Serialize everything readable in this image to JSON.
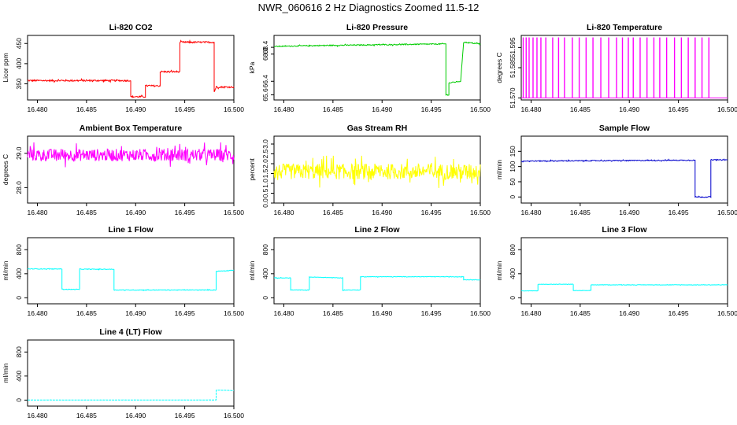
{
  "figure_title": "NWR_060616  2 Hz Diagnostics Zoomed 11.5-12",
  "x_tick_labels": [
    "16.480",
    "16.485",
    "16.490",
    "16.495",
    "16.500"
  ],
  "chart_data": [
    {
      "type": "line",
      "title": "Li-820 CO2",
      "ylabel": "Licor ppm",
      "color": "#ff0000",
      "xlim": [
        16.479,
        16.5
      ],
      "ylim": [
        310,
        470
      ],
      "y_ticks": [
        350,
        400,
        450
      ],
      "y_tick_labels": [
        "350",
        "400",
        "450"
      ],
      "segments": [
        [
          16.479,
          358
        ],
        [
          16.4895,
          358
        ],
        [
          16.4895,
          318
        ],
        [
          16.491,
          318
        ],
        [
          16.491,
          345
        ],
        [
          16.4925,
          345
        ],
        [
          16.4925,
          380
        ],
        [
          16.4945,
          380
        ],
        [
          16.4945,
          453
        ],
        [
          16.498,
          453
        ],
        [
          16.498,
          330
        ],
        [
          16.4982,
          342
        ],
        [
          16.5,
          342
        ]
      ],
      "noise": 2,
      "dashed": false
    },
    {
      "type": "line",
      "title": "Li-820 Pressure",
      "ylabel": "kPa",
      "color": "#00cc00",
      "xlim": [
        16.479,
        16.5
      ],
      "ylim": [
        65.3,
        69.1
      ],
      "y_ticks": [
        65.6,
        66.4,
        68.0,
        68.4
      ],
      "y_tick_labels": [
        "65.6",
        "66.4",
        "68.0",
        "68.4"
      ],
      "segments": [
        [
          16.479,
          68.45
        ],
        [
          16.483,
          68.5
        ],
        [
          16.4965,
          68.6
        ],
        [
          16.4965,
          65.6
        ],
        [
          16.4968,
          65.6
        ],
        [
          16.4968,
          66.3
        ],
        [
          16.498,
          66.4
        ],
        [
          16.4983,
          68.7
        ],
        [
          16.5,
          68.6
        ]
      ],
      "noise": 0.03,
      "dashed": false
    },
    {
      "type": "line",
      "title": "Li-820 Temperature",
      "ylabel": "degrees C",
      "color": "#ff00ff",
      "xlim": [
        16.479,
        16.5
      ],
      "ylim": [
        51.569,
        51.601
      ],
      "y_ticks": [
        51.57,
        51.585,
        51.595
      ],
      "y_tick_labels": [
        "51.570",
        "51.585",
        "51.595"
      ],
      "segments": [
        [
          16.479,
          51.57
        ],
        [
          16.5,
          51.57
        ]
      ],
      "spikes": [
        16.4792,
        16.4795,
        16.4798,
        16.4802,
        16.4806,
        16.481,
        16.4815,
        16.4822,
        16.4828,
        16.4834,
        16.4842,
        16.4849,
        16.4856,
        16.4863,
        16.4871,
        16.4879,
        16.4887,
        16.4893,
        16.4899,
        16.4904,
        16.4911,
        16.4918,
        16.4925,
        16.4931,
        16.4938,
        16.4946,
        16.4953,
        16.496,
        16.4967,
        16.4974,
        16.4981
      ],
      "spike_top": 51.6,
      "noise": 0,
      "dashed": false
    },
    {
      "type": "line",
      "title": "Ambient Box Temperature",
      "ylabel": "degrees C",
      "color": "#ff00ff",
      "xlim": [
        16.479,
        16.5
      ],
      "ylim": [
        27.55,
        29.5
      ],
      "y_ticks": [
        28.0,
        29.0
      ],
      "y_tick_labels": [
        "28.0",
        "29.0"
      ],
      "segments": [
        [
          16.479,
          28.95
        ],
        [
          16.5,
          28.95
        ]
      ],
      "noise": 0.18,
      "dashed": false
    },
    {
      "type": "line",
      "title": "Gas Stream RH",
      "ylabel": "percent",
      "color": "#ffff00",
      "xlim": [
        16.479,
        16.5
      ],
      "ylim": [
        0,
        3.4
      ],
      "y_ticks": [
        0.0,
        0.5,
        1.0,
        1.5,
        2.0,
        2.5,
        3.0
      ],
      "y_tick_labels": [
        "0.0",
        "0.5",
        "1.0",
        "1.5",
        "2.0",
        "2.5",
        "3.0"
      ],
      "segments": [
        [
          16.479,
          1.6
        ],
        [
          16.5,
          1.6
        ]
      ],
      "noise": 0.4,
      "dashed": false
    },
    {
      "type": "line",
      "title": "Sample Flow",
      "ylabel": "ml/min",
      "color": "#0000cc",
      "xlim": [
        16.479,
        16.5
      ],
      "ylim": [
        -20,
        200
      ],
      "y_ticks": [
        0,
        50,
        100,
        150
      ],
      "y_tick_labels": [
        "0",
        "50",
        "100",
        "150"
      ],
      "segments": [
        [
          16.479,
          118
        ],
        [
          16.4967,
          121
        ],
        [
          16.4967,
          0
        ],
        [
          16.4983,
          0
        ],
        [
          16.4983,
          122
        ],
        [
          16.5,
          122
        ]
      ],
      "noise": 1.5,
      "dashed": false
    },
    {
      "type": "line",
      "title": "Line 1 Flow",
      "ylabel": "ml/min",
      "color": "#00ffff",
      "xlim": [
        16.479,
        16.5
      ],
      "ylim": [
        -100,
        1000
      ],
      "y_ticks": [
        0,
        400,
        800
      ],
      "y_tick_labels": [
        "0",
        "400",
        "800"
      ],
      "segments": [
        [
          16.479,
          480
        ],
        [
          16.4825,
          480
        ],
        [
          16.4825,
          140
        ],
        [
          16.4843,
          140
        ],
        [
          16.4843,
          475
        ],
        [
          16.4878,
          475
        ],
        [
          16.4878,
          130
        ],
        [
          16.4982,
          130
        ],
        [
          16.4982,
          440
        ],
        [
          16.5,
          460
        ]
      ],
      "noise": 5,
      "dashed": false
    },
    {
      "type": "line",
      "title": "Line 2 Flow",
      "ylabel": "ml/min",
      "color": "#00ffff",
      "xlim": [
        16.479,
        16.5
      ],
      "ylim": [
        -100,
        1000
      ],
      "y_ticks": [
        0,
        400,
        800
      ],
      "y_tick_labels": [
        "0",
        "400",
        "800"
      ],
      "segments": [
        [
          16.479,
          330
        ],
        [
          16.4807,
          330
        ],
        [
          16.4807,
          130
        ],
        [
          16.4826,
          130
        ],
        [
          16.4826,
          345
        ],
        [
          16.486,
          330
        ],
        [
          16.486,
          130
        ],
        [
          16.4878,
          130
        ],
        [
          16.4878,
          350
        ],
        [
          16.4983,
          350
        ],
        [
          16.4983,
          300
        ],
        [
          16.5,
          300
        ]
      ],
      "noise": 4,
      "dashed": false
    },
    {
      "type": "line",
      "title": "Line 3 Flow",
      "ylabel": "ml/min",
      "color": "#00ffff",
      "xlim": [
        16.479,
        16.5
      ],
      "ylim": [
        -100,
        1000
      ],
      "y_ticks": [
        0,
        400,
        800
      ],
      "y_tick_labels": [
        "0",
        "400",
        "800"
      ],
      "segments": [
        [
          16.479,
          115
        ],
        [
          16.4807,
          115
        ],
        [
          16.4807,
          225
        ],
        [
          16.4843,
          225
        ],
        [
          16.4843,
          120
        ],
        [
          16.4861,
          120
        ],
        [
          16.4861,
          215
        ],
        [
          16.5,
          215
        ]
      ],
      "noise": 3,
      "dashed": false
    },
    {
      "type": "line",
      "title": "Line 4 (LT) Flow",
      "ylabel": "ml/min",
      "color": "#00ffff",
      "xlim": [
        16.479,
        16.5
      ],
      "ylim": [
        -100,
        1000
      ],
      "y_ticks": [
        0,
        400,
        800
      ],
      "y_tick_labels": [
        "0",
        "400",
        "800"
      ],
      "segments": [
        [
          16.479,
          2
        ],
        [
          16.4982,
          2
        ],
        [
          16.4982,
          165
        ],
        [
          16.5,
          160
        ]
      ],
      "noise": 1,
      "dashed": true
    }
  ]
}
